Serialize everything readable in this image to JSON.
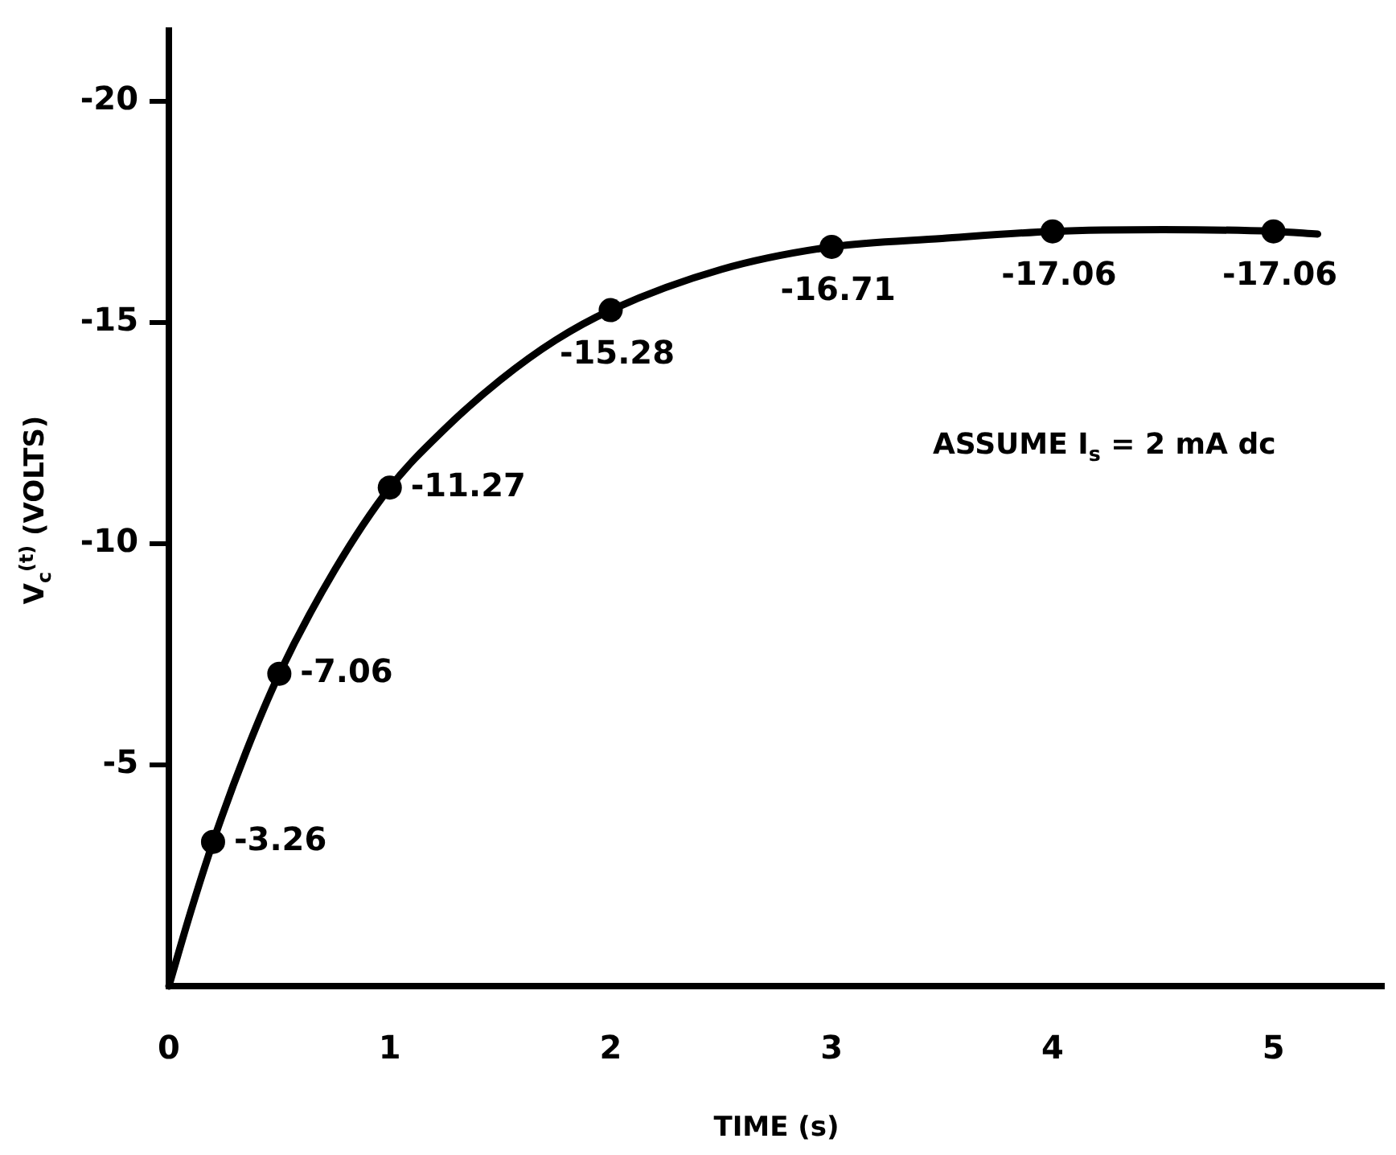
{
  "chart_data": {
    "type": "line",
    "xlabel": "TIME (s)",
    "ylabel": "V$_{c}$$^{(t)}$ (VOLTS)",
    "annotations": [
      "ASSUME I$_{s}$ = 2 mA dc"
    ],
    "xlim": [
      0,
      5.5
    ],
    "xticks": [
      0,
      1,
      2,
      3,
      4,
      5
    ],
    "ylim": [
      0,
      -21.6
    ],
    "yticks": [
      -20,
      -15,
      -10,
      -5
    ],
    "grid": false,
    "legend": false,
    "series": [
      {
        "color": "#000000",
        "marker": "none",
        "line_style": "solid",
        "x": [
          0,
          0.1,
          0.2,
          0.35,
          0.5,
          0.75,
          1,
          1.25,
          1.5,
          1.75,
          2,
          2.5,
          3,
          3.5,
          4,
          4.5,
          5,
          5.2
        ],
        "values": [
          0,
          -1.7,
          -3.26,
          -5.3,
          -7.06,
          -9.4,
          -11.27,
          -12.6,
          -13.7,
          -14.6,
          -15.28,
          -16.2,
          -16.71,
          -16.9,
          -17.06,
          -17.1,
          -17.06,
          -17.0
        ]
      },
      {
        "type": "scatter",
        "color": "#000000",
        "marker": "circle",
        "x": [
          0.2,
          0.5,
          1,
          2,
          3,
          4,
          5
        ],
        "values": [
          -3.26,
          -7.06,
          -11.27,
          -15.28,
          -16.71,
          -17.06,
          -17.06
        ],
        "value_labels": [
          "-3.26",
          "-7.06",
          "-11.27",
          "-15.28",
          "-16.71",
          "-17.06",
          "-17.06"
        ]
      }
    ]
  }
}
